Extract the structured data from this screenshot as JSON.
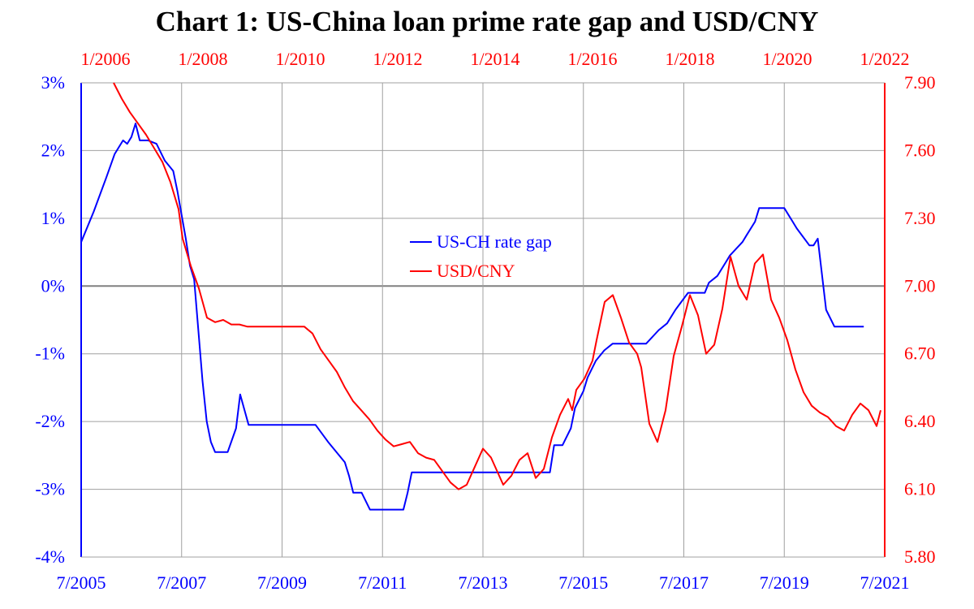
{
  "chart_data": {
    "type": "line",
    "title": "Chart 1: US-China loan prime rate gap and USD/CNY",
    "grid": true,
    "legend_placement": "center",
    "x_bottom": {
      "ticks": [
        "7/2005",
        "7/2007",
        "7/2009",
        "7/2011",
        "7/2013",
        "7/2015",
        "7/2017",
        "7/2019",
        "7/2021"
      ],
      "range": [
        "2005-07",
        "2021-07"
      ]
    },
    "x_top": {
      "ticks": [
        "1/2006",
        "1/2008",
        "1/2010",
        "1/2012",
        "1/2014",
        "1/2016",
        "1/2018",
        "1/2020",
        "1/2022"
      ],
      "range": [
        "2005-07",
        "2022-01"
      ]
    },
    "y_left": {
      "ticks": [
        "3%",
        "2%",
        "1%",
        "0%",
        "-1%",
        "-2%",
        "-3%",
        "-4%"
      ],
      "range": [
        -4,
        3
      ],
      "unit": "%"
    },
    "y_right": {
      "ticks": [
        "7.90",
        "7.60",
        "7.30",
        "7.00",
        "6.70",
        "6.40",
        "6.10",
        "5.80"
      ],
      "range": [
        5.8,
        7.9
      ]
    },
    "colors": {
      "rate_gap": "#0000ff",
      "usd_cny": "#ff0000",
      "grid": "#a0a0a0",
      "zero_line": "#808080"
    },
    "series": [
      {
        "name": "US-CH rate gap",
        "axis": "left",
        "x_axis": "bottom",
        "x": [
          "2005-07",
          "2005-10",
          "2006-01",
          "2006-03",
          "2006-05",
          "2006-06",
          "2006-07",
          "2006-08",
          "2006-09",
          "2006-10",
          "2006-11",
          "2007-01",
          "2007-03",
          "2007-05",
          "2007-06",
          "2007-08",
          "2007-09",
          "2007-10",
          "2007-12",
          "2008-01",
          "2008-02",
          "2008-03",
          "2008-04",
          "2008-06",
          "2008-08",
          "2008-09",
          "2008-11",
          "2008-12",
          "2009-03",
          "2009-04",
          "2009-05",
          "2009-06",
          "2009-08",
          "2010-03",
          "2010-06",
          "2010-10",
          "2010-11",
          "2010-12",
          "2011-02",
          "2011-04",
          "2011-06",
          "2011-07",
          "2011-12",
          "2012-01",
          "2012-02",
          "2012-03",
          "2012-05",
          "2012-06",
          "2012-07",
          "2013-06",
          "2014-11",
          "2014-12",
          "2015-02",
          "2015-04",
          "2015-05",
          "2015-07",
          "2015-08",
          "2015-10",
          "2015-12",
          "2016-02",
          "2016-06",
          "2016-10",
          "2017-01",
          "2017-03",
          "2017-05",
          "2017-08",
          "2017-10",
          "2017-12",
          "2018-01",
          "2018-03",
          "2018-05",
          "2018-06",
          "2018-09",
          "2018-10",
          "2018-12",
          "2019-01",
          "2019-06",
          "2019-07",
          "2019-09",
          "2019-10",
          "2020-01",
          "2020-02",
          "2020-03",
          "2020-05",
          "2020-07",
          "2021-02"
        ],
        "values": [
          0.65,
          1.1,
          1.6,
          1.95,
          2.15,
          2.1,
          2.2,
          2.4,
          2.15,
          2.15,
          2.15,
          2.1,
          1.85,
          1.7,
          1.4,
          0.7,
          0.3,
          0.1,
          -1.4,
          -2.0,
          -2.3,
          -2.45,
          -2.45,
          -2.45,
          -2.1,
          -1.6,
          -2.05,
          -2.05,
          -2.05,
          -2.05,
          -2.05,
          -2.05,
          -2.05,
          -2.05,
          -2.3,
          -2.6,
          -2.8,
          -3.05,
          -3.05,
          -3.3,
          -3.3,
          -3.3,
          -3.3,
          -3.05,
          -2.75,
          -2.75,
          -2.75,
          -2.75,
          -2.75,
          -2.75,
          -2.75,
          -2.35,
          -2.35,
          -2.1,
          -1.8,
          -1.55,
          -1.35,
          -1.1,
          -0.95,
          -0.85,
          -0.85,
          -0.85,
          -0.65,
          -0.55,
          -0.35,
          -0.1,
          -0.1,
          -0.1,
          0.05,
          0.15,
          0.35,
          0.45,
          0.65,
          0.75,
          0.95,
          1.15,
          1.15,
          1.15,
          0.95,
          0.85,
          0.6,
          0.6,
          0.7,
          -0.35,
          -0.6,
          -0.6
        ]
      },
      {
        "name": "USD/CNY",
        "axis": "right",
        "x_axis": "top",
        "x": [
          "2006-03",
          "2006-05",
          "2006-07",
          "2006-09",
          "2006-11",
          "2007-01",
          "2007-03",
          "2007-05",
          "2007-07",
          "2007-08",
          "2007-10",
          "2007-12",
          "2008-02",
          "2008-04",
          "2008-06",
          "2008-08",
          "2008-10",
          "2008-12",
          "2009-02",
          "2009-05",
          "2009-08",
          "2009-11",
          "2010-02",
          "2010-04",
          "2010-06",
          "2010-08",
          "2010-10",
          "2010-12",
          "2011-02",
          "2011-04",
          "2011-06",
          "2011-08",
          "2011-10",
          "2011-12",
          "2012-02",
          "2012-04",
          "2012-06",
          "2012-08",
          "2012-10",
          "2012-12",
          "2013-02",
          "2013-04",
          "2013-06",
          "2013-08",
          "2013-10",
          "2013-12",
          "2014-02",
          "2014-03",
          "2014-05",
          "2014-07",
          "2014-09",
          "2014-11",
          "2015-01",
          "2015-03",
          "2015-05",
          "2015-07",
          "2015-08",
          "2015-09",
          "2015-11",
          "2016-01",
          "2016-02",
          "2016-04",
          "2016-06",
          "2016-08",
          "2016-10",
          "2016-12",
          "2017-01",
          "2017-03",
          "2017-05",
          "2017-07",
          "2017-09",
          "2017-11",
          "2018-01",
          "2018-03",
          "2018-05",
          "2018-07",
          "2018-09",
          "2018-11",
          "2019-01",
          "2019-03",
          "2019-05",
          "2019-07",
          "2019-09",
          "2019-11",
          "2020-01",
          "2020-03",
          "2020-05",
          "2020-07",
          "2020-09",
          "2020-11",
          "2021-01",
          "2021-03",
          "2021-05",
          "2021-07",
          "2021-09",
          "2021-11",
          "2021-12"
        ],
        "values": [
          7.9,
          7.83,
          7.77,
          7.72,
          7.67,
          7.61,
          7.55,
          7.46,
          7.34,
          7.21,
          7.09,
          6.99,
          6.86,
          6.84,
          6.85,
          6.83,
          6.83,
          6.82,
          6.82,
          6.82,
          6.82,
          6.82,
          6.82,
          6.79,
          6.72,
          6.67,
          6.62,
          6.55,
          6.49,
          6.45,
          6.41,
          6.36,
          6.32,
          6.29,
          6.3,
          6.31,
          6.26,
          6.24,
          6.23,
          6.18,
          6.13,
          6.1,
          6.12,
          6.2,
          6.28,
          6.24,
          6.16,
          6.12,
          6.16,
          6.23,
          6.26,
          6.15,
          6.19,
          6.33,
          6.43,
          6.5,
          6.45,
          6.54,
          6.59,
          6.67,
          6.76,
          6.93,
          6.96,
          6.86,
          6.75,
          6.7,
          6.64,
          6.39,
          6.31,
          6.45,
          6.69,
          6.82,
          6.96,
          6.87,
          6.7,
          6.74,
          6.9,
          7.13,
          7.0,
          6.94,
          7.1,
          7.14,
          6.94,
          6.86,
          6.76,
          6.63,
          6.53,
          6.47,
          6.44,
          6.42,
          6.38,
          6.36,
          6.43,
          6.48,
          6.45,
          6.38,
          6.45
        ]
      }
    ]
  }
}
